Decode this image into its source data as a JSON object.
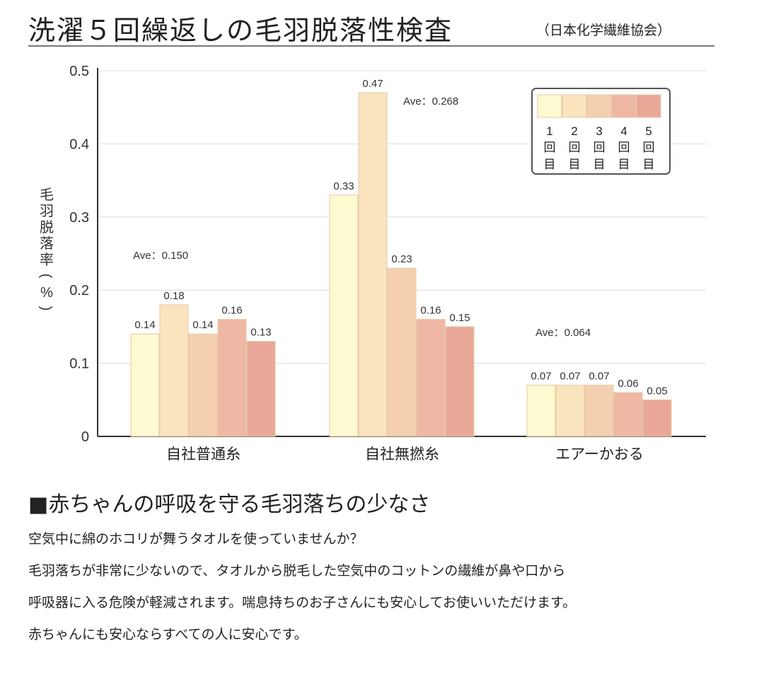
{
  "header": {
    "title": "洗濯５回繰返しの毛羽脱落性検査",
    "subtitle": "（日本化学繊維協会）"
  },
  "chart_data": {
    "type": "bar",
    "ylabel": "毛羽脱落率(%)",
    "ylim": [
      0,
      0.5
    ],
    "yticks": [
      {
        "value": 0,
        "label": "0"
      },
      {
        "value": 0.1,
        "label": "0.1"
      },
      {
        "value": 0.2,
        "label": "0.2"
      },
      {
        "value": 0.3,
        "label": "0.3"
      },
      {
        "value": 0.4,
        "label": "0.4"
      },
      {
        "value": 0.5,
        "label": "0.5"
      }
    ],
    "grid": true,
    "categories": [
      "自社普通糸",
      "自社無撚糸",
      "エアーかおる"
    ],
    "series": [
      {
        "name": "1回目",
        "values": [
          0.14,
          0.33,
          0.07
        ],
        "labels": [
          "0.14",
          "0.33",
          "0.07"
        ]
      },
      {
        "name": "2回目",
        "values": [
          0.18,
          0.47,
          0.07
        ],
        "labels": [
          "0.18",
          "0.47",
          "0.07"
        ]
      },
      {
        "name": "3回目",
        "values": [
          0.14,
          0.23,
          0.07
        ],
        "labels": [
          "0.14",
          "0.23",
          "0.07"
        ]
      },
      {
        "name": "4回目",
        "values": [
          0.16,
          0.16,
          0.06
        ],
        "labels": [
          "0.16",
          "0.16",
          "0.06"
        ]
      },
      {
        "name": "5回目",
        "values": [
          0.13,
          0.15,
          0.05
        ],
        "labels": [
          "0.13",
          "0.15",
          "0.05"
        ]
      }
    ],
    "averages": [
      {
        "label": "Ave：0.150",
        "value": 0.15
      },
      {
        "label": "Ave：0.268",
        "value": 0.268
      },
      {
        "label": "Ave：0.064",
        "value": 0.064
      }
    ],
    "legend": {
      "placement": "top-right",
      "entries": [
        {
          "num": "1",
          "char1": "回",
          "char2": "目"
        },
        {
          "num": "2",
          "char1": "回",
          "char2": "目"
        },
        {
          "num": "3",
          "char1": "回",
          "char2": "目"
        },
        {
          "num": "4",
          "char1": "回",
          "char2": "目"
        },
        {
          "num": "5",
          "char1": "回",
          "char2": "目"
        }
      ]
    },
    "colors": [
      "#fdf9d0",
      "#f9e4bd",
      "#f4d0b0",
      "#eeb8a4",
      "#e9a898"
    ]
  },
  "section": {
    "heading": "■赤ちゃんの呼吸を守る毛羽落ちの少なさ",
    "lines": [
      "空気中に綿のホコリが舞うタオルを使っていませんか？",
      "毛羽落ちが非常に少ないので、タオルから脱毛した空気中のコットンの繊維が鼻や口から",
      "呼吸器に入る危険が軽減されます。喘息持ちのお子さんにも安心してお使いいただけます。",
      "赤ちゃんにも安心ならすべての人に安心です。"
    ]
  }
}
